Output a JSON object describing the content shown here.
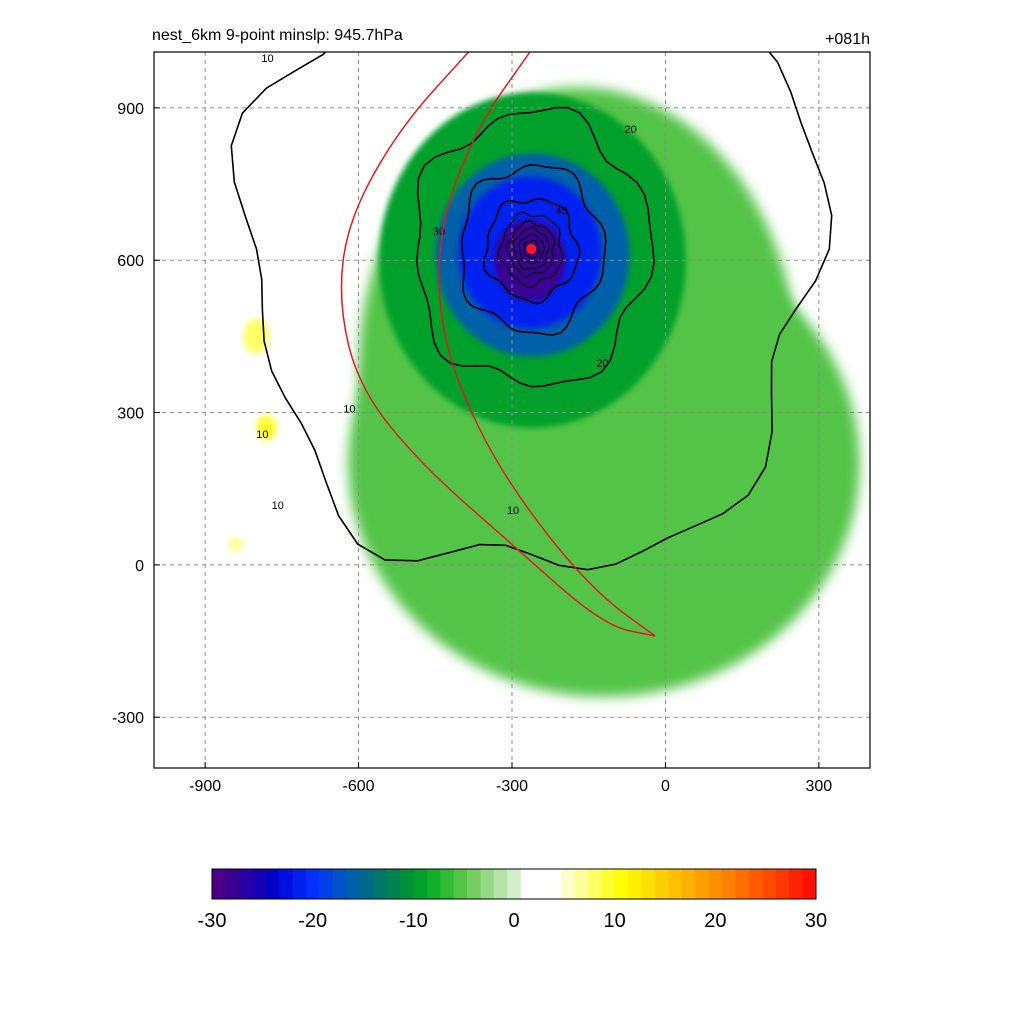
{
  "title_left": "nest_6km  9-point minslp: 945.7hPa",
  "title_right": "+081h",
  "chart_data": {
    "type": "heatmap",
    "xlim": [
      -1000,
      400
    ],
    "ylim": [
      -400,
      1010
    ],
    "xticks": [
      -900,
      -600,
      -300,
      0,
      300
    ],
    "yticks": [
      900,
      600,
      300,
      0,
      -300
    ],
    "grid": true,
    "grid_style": "dashed",
    "storm_center": [
      -262,
      622
    ],
    "filled_field": {
      "description_levels": "shaded anomaly, minimum near -30 at storm core, mostly -5 to -15 over green region",
      "blobs": [
        {
          "x": -170,
          "y": 380,
          "rx": 430,
          "ry": 560,
          "value": -6
        },
        {
          "x": -120,
          "y": 200,
          "rx": 500,
          "ry": 460,
          "value": -5
        },
        {
          "x": -260,
          "y": 600,
          "rx": 300,
          "ry": 330,
          "value": -10
        },
        {
          "x": -260,
          "y": 610,
          "rx": 190,
          "ry": 200,
          "value": -16
        },
        {
          "x": -265,
          "y": 615,
          "rx": 140,
          "ry": 150,
          "value": -21
        },
        {
          "x": -265,
          "y": 600,
          "rx": 70,
          "ry": 80,
          "value": -28
        },
        {
          "x": -800,
          "y": 450,
          "rx": 25,
          "ry": 35,
          "value": 8
        },
        {
          "x": -780,
          "y": 270,
          "rx": 20,
          "ry": 25,
          "value": 9
        },
        {
          "x": -840,
          "y": 40,
          "rx": 15,
          "ry": 15,
          "value": 7
        }
      ]
    },
    "contours": {
      "color": "#000000",
      "labels": [
        "10",
        "20",
        "30",
        "40",
        "10",
        "20",
        "10",
        "10",
        "10"
      ],
      "rings": [
        {
          "level": 10,
          "rx": 560,
          "ry": 640
        },
        {
          "level": 20,
          "rx": 230,
          "ry": 270
        },
        {
          "level": 30,
          "rx": 140,
          "ry": 165
        },
        {
          "level": 40,
          "rx": 90,
          "ry": 100
        },
        {
          "level": 50,
          "rx": 60,
          "ry": 70
        },
        {
          "level": 60,
          "rx": 45,
          "ry": 52
        },
        {
          "level": 70,
          "rx": 34,
          "ry": 40
        },
        {
          "level": 80,
          "rx": 24,
          "ry": 28
        },
        {
          "level": 90,
          "rx": 15,
          "ry": 17
        }
      ]
    },
    "red_curves": [
      {
        "points": [
          [
            -385,
            1010
          ],
          [
            -520,
            860
          ],
          [
            -620,
            680
          ],
          [
            -640,
            520
          ],
          [
            -600,
            350
          ],
          [
            -480,
            200
          ],
          [
            -300,
            40
          ],
          [
            -120,
            -120
          ],
          [
            -20,
            -140
          ]
        ]
      },
      {
        "points": [
          [
            -265,
            1010
          ],
          [
            -370,
            860
          ],
          [
            -445,
            660
          ],
          [
            -440,
            450
          ],
          [
            -360,
            250
          ],
          [
            -250,
            80
          ],
          [
            -130,
            -60
          ],
          [
            -20,
            -140
          ]
        ]
      }
    ],
    "colorbar": {
      "min": -30,
      "max": 30,
      "ticks": [
        -30,
        -20,
        -10,
        0,
        10,
        20,
        30
      ],
      "colors": [
        "#4b0087",
        "#3a0094",
        "#2800a3",
        "#1600b4",
        "#0500c8",
        "#0010e0",
        "#0020f0",
        "#0030ff",
        "#0042e6",
        "#0052c8",
        "#0060a8",
        "#006a88",
        "#00756a",
        "#008250",
        "#00903a",
        "#00a02c",
        "#10b02a",
        "#30bb34",
        "#52c446",
        "#74ce62",
        "#96d985",
        "#b6e3a8",
        "#d4eec8",
        "#ffffff",
        "#ffffff",
        "#ffffff",
        "#ffffcc",
        "#ffff99",
        "#ffff66",
        "#ffff33",
        "#ffff00",
        "#fff000",
        "#ffe000",
        "#ffd000",
        "#ffc000",
        "#ffb000",
        "#ffa000",
        "#ff9000",
        "#ff8000",
        "#ff6e00",
        "#ff5c00",
        "#ff4a00",
        "#ff3800",
        "#ff2400",
        "#ff1000"
      ]
    }
  }
}
